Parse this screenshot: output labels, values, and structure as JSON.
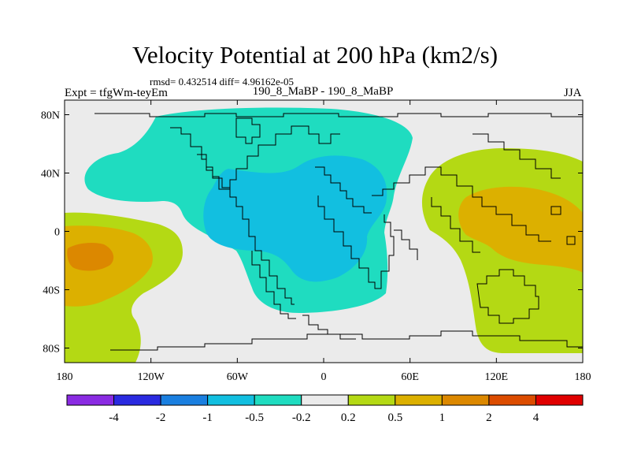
{
  "title": "Velocity Potential at 200 hPa (km2/s)",
  "stats": "rmsd= 0.432514  diff= 4.96162e-05",
  "expt_label": "Expt = tfgWm-teyEm",
  "case_label": "190_8_MaBP - 190_8_MaBP",
  "season": "JJA",
  "lat_ticks": [
    {
      "label": "80N",
      "lat": 80
    },
    {
      "label": "40N",
      "lat": 40
    },
    {
      "label": "0",
      "lat": 0
    },
    {
      "label": "40S",
      "lat": -40
    },
    {
      "label": "80S",
      "lat": -80
    }
  ],
  "lon_ticks": [
    {
      "label": "180",
      "lon": -180
    },
    {
      "label": "120W",
      "lon": -120
    },
    {
      "label": "60W",
      "lon": -60
    },
    {
      "label": "0",
      "lon": 0
    },
    {
      "label": "60E",
      "lon": 60
    },
    {
      "label": "120E",
      "lon": 120
    },
    {
      "label": "180",
      "lon": 180
    }
  ],
  "colorbar": {
    "colors": [
      "#8a2be2",
      "#2a2ae0",
      "#1a7fe0",
      "#12bfe0",
      "#1fdcc0",
      "#ebebeb",
      "#b4d914",
      "#dcb000",
      "#dc8800",
      "#dc4c00",
      "#e00000"
    ],
    "labels": [
      "-4",
      "-2",
      "-1",
      "-0.5",
      "-0.2",
      "0.2",
      "0.5",
      "1",
      "2",
      "4"
    ]
  },
  "colors": {
    "teal": "#1fdcc0",
    "cyan": "#12bfe0",
    "neutral": "#ebebeb",
    "lime": "#b4d914",
    "yellow_orange": "#dcb000",
    "orange": "#dc8800",
    "coast": "#000000"
  }
}
